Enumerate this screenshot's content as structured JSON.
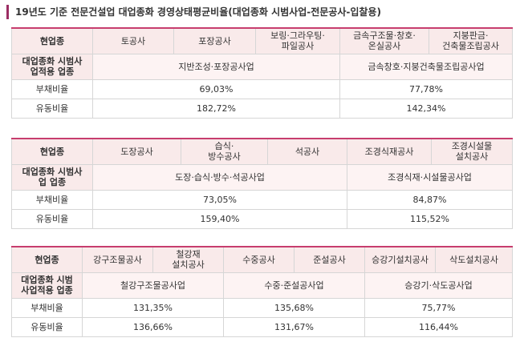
{
  "title": "19년도 기준 전문건설업 대업종화 경영상태평균비율(대업종화 시범사업-전문공사-입찰용)",
  "tables": [
    {
      "header_label": "현업종",
      "trades": [
        "토공사",
        "포장공사",
        "보링·그라우팅·\n파일공사",
        "금속구조물·창호·\n온실공사",
        "지붕판금·\n건축물조립공사"
      ],
      "group_label": "대업종화 시범사\n업적용 업종",
      "groups": [
        "지반조성·포장공사업",
        "금속창호·지붕건축물조립공사업"
      ],
      "rows": [
        {
          "label": "부채비율",
          "values": [
            "69,03%",
            "77,78%"
          ]
        },
        {
          "label": "유동비율",
          "values": [
            "182,72%",
            "142,34%"
          ]
        }
      ]
    },
    {
      "header_label": "현업종",
      "trades": [
        "도장공사",
        "습식·\n방수공사",
        "석공사",
        "조경식재공사",
        "조경시설물\n설치공사"
      ],
      "group_label": "대업종화 시범사\n업 업종",
      "groups": [
        "도장·습식·방수·석공사업",
        "조경식재·시설물공사업"
      ],
      "rows": [
        {
          "label": "부채비율",
          "values": [
            "73,05%",
            "84,87%"
          ]
        },
        {
          "label": "유동비율",
          "values": [
            "159,40%",
            "115,52%"
          ]
        }
      ]
    },
    {
      "header_label": "현업종",
      "trades": [
        "강구조물공사",
        "철강재\n설치공사",
        "수중공사",
        "준설공사",
        "승강기설치공사",
        "삭도설치공사"
      ],
      "group_label": "대업종화 시범\n사업적용 업종",
      "groups": [
        "철강구조물공사업",
        "수중·준설공사업",
        "승강기·삭도공사업"
      ],
      "rows": [
        {
          "label": "부채비율",
          "values": [
            "131,35%",
            "135,68%",
            "75,77%"
          ]
        },
        {
          "label": "유동비율",
          "values": [
            "136,66%",
            "131,67%",
            "116,44%"
          ]
        }
      ]
    }
  ]
}
